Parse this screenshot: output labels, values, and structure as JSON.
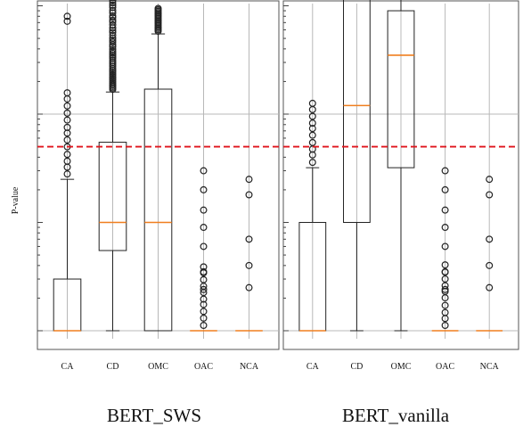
{
  "chart_data": {
    "type": "box",
    "ylabel": "P-value",
    "y_scale": "log",
    "grid": true,
    "threshold": {
      "style": "dashed",
      "color": "#e0141c",
      "y": 0.05
    },
    "colors": {
      "median": "#f07f1f",
      "box": "#222222",
      "threshold": "#e0141c"
    },
    "panels": [
      {
        "title": "BERT_SWS",
        "categories": [
          "CA",
          "CD",
          "OMC",
          "OAC",
          "NCA"
        ],
        "boxes": [
          {
            "category": "CA",
            "min": 0.001,
            "q1": 0.001,
            "median": 0.001,
            "q3": 0.003,
            "max": 0.025,
            "fliers": "sparse"
          },
          {
            "category": "CD",
            "min": 0.001,
            "q1": 0.0055,
            "median": 0.01,
            "q3": 0.055,
            "max": 0.16,
            "fliers": "dense"
          },
          {
            "category": "OMC",
            "min": 0.001,
            "q1": 0.001,
            "median": 0.01,
            "q3": 0.17,
            "max": 0.55,
            "fliers": "very-dense"
          },
          {
            "category": "OAC",
            "min": 0.001,
            "q1": 0.001,
            "median": 0.001,
            "q3": 0.001,
            "max": 0.001,
            "fliers": "sparse"
          },
          {
            "category": "NCA",
            "min": 0.001,
            "q1": 0.001,
            "median": 0.001,
            "q3": 0.001,
            "max": 0.001,
            "fliers": "few"
          }
        ]
      },
      {
        "title": "BERT_vanilla",
        "categories": [
          "CA",
          "CD",
          "OMC",
          "OAC",
          "NCA"
        ],
        "boxes": [
          {
            "category": "CA",
            "min": 0.001,
            "q1": 0.001,
            "median": 0.001,
            "q3": 0.01,
            "max": 0.032,
            "fliers": "sparse"
          },
          {
            "category": "CD",
            "min": 0.001,
            "q1": 0.01,
            "median": 0.12,
            "q3": 1.6,
            "max": 5.5,
            "fliers": "dense"
          },
          {
            "category": "OMC",
            "min": 0.001,
            "q1": 0.032,
            "median": 0.35,
            "q3": 0.9,
            "max": 4.0,
            "fliers": "very-dense"
          },
          {
            "category": "OAC",
            "min": 0.001,
            "q1": 0.001,
            "median": 0.001,
            "q3": 0.001,
            "max": 0.001,
            "fliers": "sparse"
          },
          {
            "category": "NCA",
            "min": 0.001,
            "q1": 0.001,
            "median": 0.001,
            "q3": 0.001,
            "max": 0.001,
            "fliers": "few"
          }
        ]
      }
    ]
  }
}
